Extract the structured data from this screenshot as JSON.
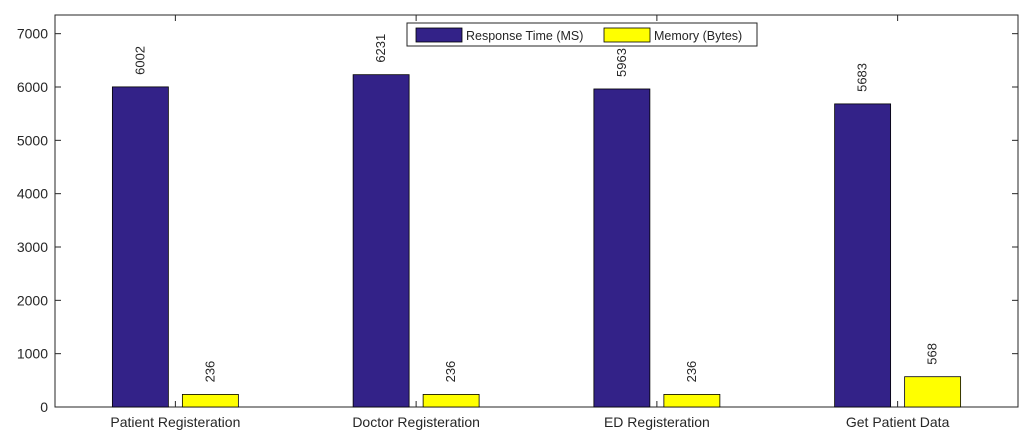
{
  "chart_data": {
    "type": "bar",
    "categories": [
      "Patient Registeration",
      "Doctor Registeration",
      "ED Registeration",
      "Get Patient Data"
    ],
    "series": [
      {
        "name": "Response Time (MS)",
        "values": [
          6002,
          6231,
          5963,
          5683
        ],
        "color": "#332288"
      },
      {
        "name": "Memory (Bytes)",
        "values": [
          236,
          236,
          236,
          568
        ],
        "color": "#ffff00"
      }
    ],
    "yticks": [
      0,
      1000,
      2000,
      3000,
      4000,
      5000,
      6000,
      7000
    ],
    "ylim": [
      0,
      7350
    ],
    "xlabel": "",
    "ylabel": "",
    "title": "",
    "legend": "top-center",
    "grid": false
  }
}
